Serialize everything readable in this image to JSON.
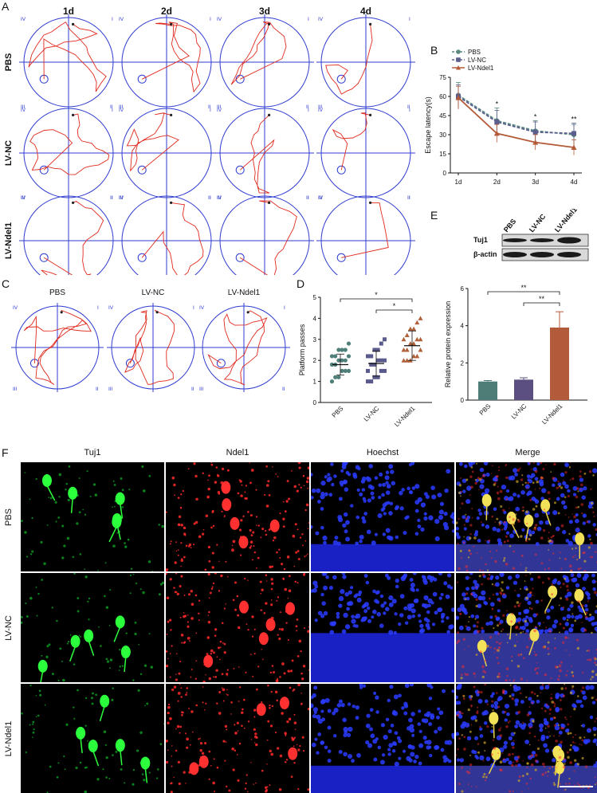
{
  "panels": {
    "A": {
      "letter": "A",
      "days": [
        "1d",
        "2d",
        "3d",
        "4d"
      ],
      "groups": [
        "PBS",
        "LV-NC",
        "LV-Ndel1"
      ],
      "quadrants": [
        "IV",
        "I",
        "III",
        "II"
      ]
    },
    "B": {
      "letter": "B",
      "chart_data": {
        "type": "line",
        "ylabel": "Escape latency(s)",
        "categories": [
          "1d",
          "2d",
          "3d",
          "4d"
        ],
        "ylim": [
          0,
          75
        ],
        "yticks": [
          0,
          15,
          30,
          45,
          60,
          75
        ],
        "series": [
          {
            "name": "PBS",
            "values": [
              61,
              41,
              33,
              30
            ],
            "err": [
              10,
              10,
              8,
              8
            ],
            "color": "#5a8a80",
            "marker": "circle",
            "dash": true
          },
          {
            "name": "LV-NC",
            "values": [
              60,
              40,
              32,
              31
            ],
            "err": [
              9,
              9,
              8,
              8
            ],
            "color": "#5b5f8e",
            "marker": "square",
            "dash": true
          },
          {
            "name": "LV-Ndel1",
            "values": [
              59,
              31,
              24,
              20
            ],
            "err": [
              9,
              7,
              6,
              6
            ],
            "color": "#b35a38",
            "marker": "triangle",
            "dash": false
          }
        ],
        "significance": [
          "",
          "*",
          "*",
          "**"
        ],
        "legend": "top-left"
      }
    },
    "C": {
      "letter": "C",
      "groups": [
        "PBS",
        "LV-NC",
        "LV-Ndel1"
      ],
      "quadrants": [
        "IV",
        "I",
        "III",
        "II"
      ]
    },
    "D": {
      "letter": "D",
      "chart_data": {
        "type": "scatter",
        "ylabel": "Platform passes",
        "categories": [
          "PBS",
          "LV-NC",
          "LV-Ndel1"
        ],
        "ylim": [
          0,
          5
        ],
        "yticks": [
          0,
          1,
          2,
          3,
          4,
          5
        ],
        "means": [
          1.8,
          1.85,
          2.7
        ],
        "sd": [
          0.5,
          0.6,
          0.7
        ],
        "points": [
          [
            1.0,
            1.2,
            1.2,
            1.5,
            1.5,
            1.5,
            1.8,
            1.8,
            2.0,
            2.0,
            2.0,
            2.2,
            2.2,
            2.2,
            2.5,
            2.5,
            2.5,
            2.8
          ],
          [
            1.0,
            1.0,
            1.2,
            1.2,
            1.5,
            1.5,
            1.5,
            1.8,
            1.8,
            2.0,
            2.0,
            2.0,
            2.2,
            2.2,
            2.5,
            2.5,
            2.8,
            3.0
          ],
          [
            2.0,
            2.0,
            2.0,
            2.2,
            2.2,
            2.5,
            2.5,
            2.5,
            2.8,
            2.8,
            3.0,
            3.0,
            3.0,
            3.2,
            3.5,
            3.5,
            3.8,
            4.0
          ]
        ],
        "colors": [
          "#4f7f79",
          "#5a5a8c",
          "#b0613a"
        ],
        "markers": [
          "circle",
          "square",
          "triangle"
        ],
        "significance": [
          {
            "from": 0,
            "to": 2,
            "label": "*"
          },
          {
            "from": 1,
            "to": 2,
            "label": "*"
          }
        ]
      }
    },
    "E": {
      "letter": "E",
      "blot": {
        "lanes": [
          "PBS",
          "LV-NC",
          "LV-Ndel1"
        ],
        "rows": [
          "Tuj1",
          "β-actin"
        ]
      },
      "chart_data": {
        "type": "bar",
        "ylabel": "Relative protein expression",
        "categories": [
          "PBS",
          "LV-NC",
          "LV-Ndel1"
        ],
        "values": [
          1.0,
          1.1,
          3.9
        ],
        "err": [
          0.05,
          0.1,
          0.85
        ],
        "colors": [
          "#4e7d78",
          "#5a4f80",
          "#b35a3b"
        ],
        "ylim": [
          0,
          6
        ],
        "yticks": [
          0,
          2,
          4,
          6
        ],
        "significance": [
          {
            "from": 0,
            "to": 2,
            "label": "**"
          },
          {
            "from": 1,
            "to": 2,
            "label": "**"
          }
        ]
      }
    },
    "F": {
      "letter": "F",
      "columns": [
        "Tuj1",
        "Ndel1",
        "Hoechst",
        "Merge"
      ],
      "rows": [
        "PBS",
        "LV-NC",
        "LV-Ndel1"
      ]
    }
  }
}
